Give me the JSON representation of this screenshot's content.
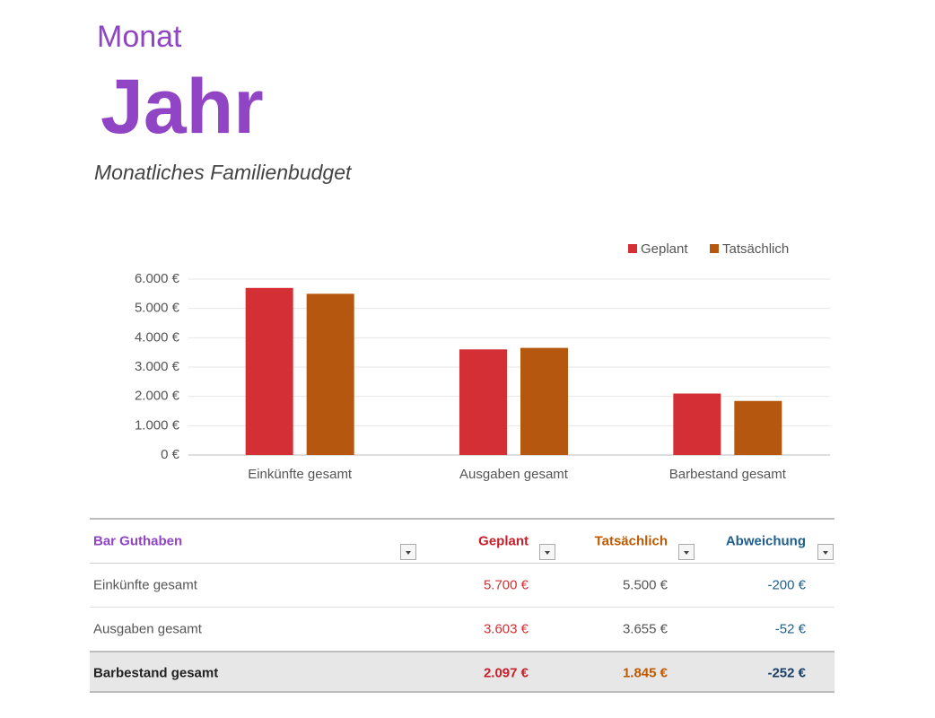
{
  "header": {
    "month": "Monat",
    "year": "Jahr",
    "subtitle": "Monatliches Familienbudget"
  },
  "chart_data": {
    "type": "bar",
    "categories": [
      "Einkünfte gesamt",
      "Ausgaben gesamt",
      "Barbestand gesamt"
    ],
    "series": [
      {
        "name": "Geplant",
        "color": "#d32f34",
        "values": [
          5700,
          3603,
          2097
        ]
      },
      {
        "name": "Tatsächlich",
        "color": "#b5570f",
        "values": [
          5500,
          3655,
          1845
        ]
      }
    ],
    "ylim": [
      0,
      6000
    ],
    "yticks": [
      {
        "value": 0,
        "label": "0 €"
      },
      {
        "value": 1000,
        "label": "1.000 €"
      },
      {
        "value": 2000,
        "label": "2.000 €"
      },
      {
        "value": 3000,
        "label": "3.000 €"
      },
      {
        "value": 4000,
        "label": "4.000 €"
      },
      {
        "value": 5000,
        "label": "5.000 €"
      },
      {
        "value": 6000,
        "label": "6.000 €"
      }
    ],
    "grid": true,
    "legend": "top-right"
  },
  "table": {
    "columns": [
      "Bar Guthaben",
      "Geplant",
      "Tatsächlich",
      "Abweichung"
    ],
    "rows": [
      [
        "Einkünfte gesamt",
        "5.700 €",
        "5.500 €",
        "-200 €"
      ],
      [
        "Ausgaben gesamt",
        "3.603 €",
        "3.655 €",
        "-52 €"
      ],
      [
        "Barbestand gesamt",
        "2.097 €",
        "1.845 €",
        "-252 €"
      ]
    ]
  }
}
